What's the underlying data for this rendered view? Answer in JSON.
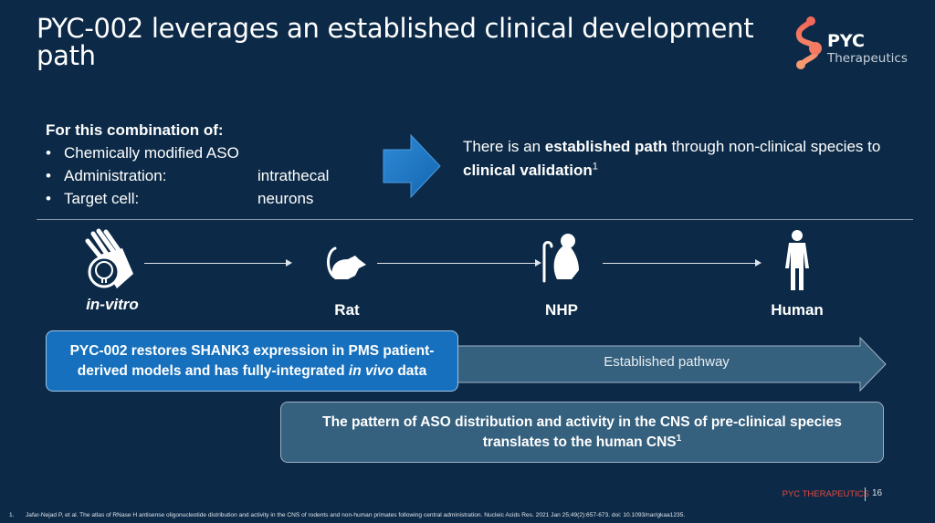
{
  "title": "PYC-002 leverages an established clinical development path",
  "logo": {
    "name": "PYC",
    "sub": "Therapeutics"
  },
  "combination": {
    "heading": "For this combination of:",
    "items": [
      {
        "label": "Chemically modified ASO",
        "value": ""
      },
      {
        "label": "Administration:",
        "value": "intrathecal"
      },
      {
        "label": "Target cell:",
        "value": "neurons"
      }
    ]
  },
  "claim": {
    "pre": "There is an ",
    "bold1": "established path",
    "mid": " through non-clinical species to ",
    "bold2": "clinical validation",
    "sup": "1"
  },
  "stages": [
    {
      "label": "in-vitro",
      "icon": "hand-brain-icon"
    },
    {
      "label": "Rat",
      "icon": "rat-icon"
    },
    {
      "label": "NHP",
      "icon": "monkey-icon"
    },
    {
      "label": "Human",
      "icon": "human-icon"
    }
  ],
  "blue_box": {
    "pre": "PYC-002 restores SHANK3 expression in PMS patient-derived models and has fully-integrated ",
    "italic": "in vivo",
    "post": " data"
  },
  "pathway_label": "Established pathway",
  "gray_box": {
    "text": "The pattern of ASO distribution and activity in the CNS of pre-clinical species translates to the human CNS",
    "sup": "1"
  },
  "footer": {
    "company": "PYC THERAPEUTICS",
    "page": "16"
  },
  "footnote": {
    "num": "1.",
    "text": "Jafar-Nejad P, et al. The atlas of RNase H antisense oligonucleotide distribution and activity in the CNS of rodents and non-human primates following central administration. Nucleic Acids Res. 2021 Jan 25;49(2):657-673. doi: 10.1093/nar/gkaa1235."
  },
  "colors": {
    "background": "#0c2a47",
    "blue_box": "#1670bd",
    "gray_box": "#35607e",
    "accent": "#e3473f",
    "logo": "#f07a5e"
  }
}
